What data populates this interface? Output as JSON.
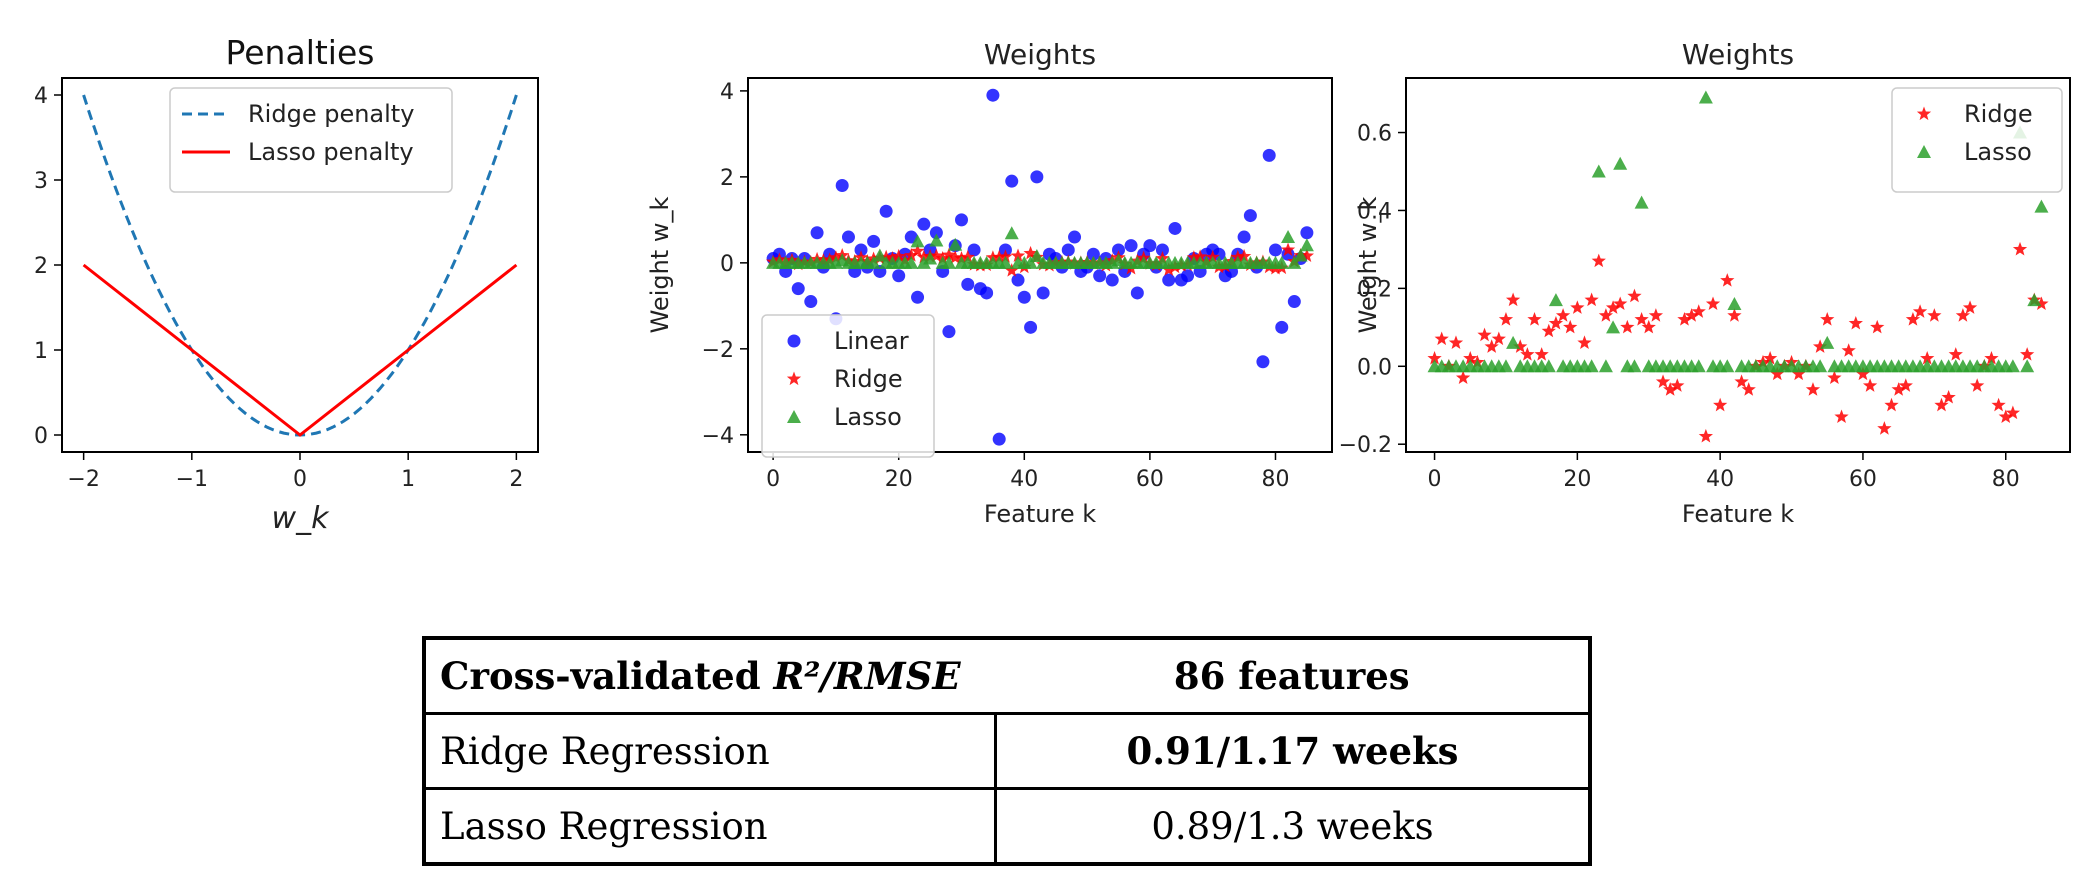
{
  "chart_data": [
    {
      "type": "line",
      "title": "Penalties",
      "xlabel": "w_k",
      "ylabel": "",
      "xlim": [
        -2.2,
        2.2
      ],
      "ylim": [
        -0.2,
        4.2
      ],
      "xticks": [
        "−2",
        "−1",
        "0",
        "1",
        "2"
      ],
      "yticks": [
        "0",
        "1",
        "2",
        "3",
        "4"
      ],
      "legend_position": "top-center",
      "series": [
        {
          "name": "Ridge penalty",
          "style": "dashed",
          "color": "#1f77b4",
          "x": [
            -2,
            -1.5,
            -1,
            -0.5,
            0,
            0.5,
            1,
            1.5,
            2
          ],
          "y": [
            4,
            2.25,
            1,
            0.25,
            0,
            0.25,
            1,
            2.25,
            4
          ]
        },
        {
          "name": "Lasso penalty",
          "style": "solid",
          "color": "#ff0000",
          "x": [
            -2,
            -1,
            0,
            1,
            2
          ],
          "y": [
            2,
            1,
            0,
            1,
            2
          ]
        }
      ]
    },
    {
      "type": "scatter",
      "title": "Weights",
      "xlabel": "Feature k",
      "ylabel": "Weight w_k",
      "xlim": [
        -4,
        89
      ],
      "ylim": [
        -4.4,
        4.3
      ],
      "xticks": [
        "0",
        "20",
        "40",
        "60",
        "80"
      ],
      "yticks": [
        "−4",
        "−2",
        "0",
        "2",
        "4"
      ],
      "legend_position": "bottom-left",
      "series": [
        {
          "name": "Linear",
          "marker": "circle",
          "color": "#0000ff",
          "x": [
            0,
            1,
            2,
            3,
            4,
            5,
            6,
            7,
            8,
            9,
            10,
            11,
            12,
            13,
            14,
            15,
            16,
            17,
            18,
            19,
            20,
            21,
            22,
            23,
            24,
            25,
            26,
            27,
            28,
            29,
            30,
            31,
            32,
            33,
            34,
            35,
            36,
            37,
            38,
            39,
            40,
            41,
            42,
            43,
            44,
            45,
            46,
            47,
            48,
            49,
            50,
            51,
            52,
            53,
            54,
            55,
            56,
            57,
            58,
            59,
            60,
            61,
            62,
            63,
            64,
            65,
            66,
            67,
            68,
            69,
            70,
            71,
            72,
            73,
            74,
            75,
            76,
            77,
            78,
            79,
            80,
            81,
            82,
            83,
            84,
            85
          ],
          "y": [
            0.1,
            0.2,
            -0.2,
            0.1,
            -0.6,
            0.1,
            -0.9,
            0.7,
            -0.1,
            0.2,
            -1.3,
            1.8,
            0.6,
            -0.2,
            0.3,
            -0.1,
            0.5,
            -0.2,
            1.2,
            0.1,
            -0.3,
            0.2,
            0.6,
            -0.8,
            0.9,
            0.3,
            0.7,
            -0.2,
            -1.6,
            0.4,
            1.0,
            -0.5,
            0.3,
            -0.6,
            -0.7,
            3.9,
            -4.1,
            0.3,
            1.9,
            -0.4,
            -0.8,
            -1.5,
            2.0,
            -0.7,
            0.2,
            0.1,
            -0.1,
            0.3,
            0.6,
            -0.2,
            -0.1,
            0.2,
            -0.3,
            0.1,
            -0.4,
            0.3,
            -0.2,
            0.4,
            -0.7,
            0.2,
            0.4,
            -0.1,
            0.3,
            -0.4,
            0.8,
            -0.4,
            -0.3,
            0.1,
            -0.2,
            0.2,
            0.3,
            0.2,
            -0.3,
            -0.2,
            0.2,
            0.6,
            1.1,
            -0.1,
            -2.3,
            2.5,
            0.3,
            -1.5,
            0.2,
            -0.9,
            0.1,
            0.7
          ]
        },
        {
          "name": "Ridge",
          "marker": "star",
          "color": "#ff0000",
          "x": [
            0,
            1,
            2,
            3,
            4,
            5,
            6,
            7,
            8,
            9,
            10,
            11,
            12,
            13,
            14,
            15,
            16,
            17,
            18,
            19,
            20,
            21,
            22,
            23,
            24,
            25,
            26,
            27,
            28,
            29,
            30,
            31,
            32,
            33,
            34,
            35,
            36,
            37,
            38,
            39,
            40,
            41,
            42,
            43,
            44,
            45,
            46,
            47,
            48,
            49,
            50,
            51,
            52,
            53,
            54,
            55,
            56,
            57,
            58,
            59,
            60,
            61,
            62,
            63,
            64,
            65,
            66,
            67,
            68,
            69,
            70,
            71,
            72,
            73,
            74,
            75,
            76,
            77,
            78,
            79,
            80,
            81,
            82,
            83,
            84,
            85
          ],
          "y": [
            0.02,
            0.07,
            0.0,
            0.06,
            -0.03,
            0.02,
            0.01,
            0.08,
            0.05,
            0.07,
            0.12,
            0.17,
            0.05,
            0.03,
            0.12,
            0.03,
            0.09,
            0.11,
            0.13,
            0.1,
            0.15,
            0.06,
            0.17,
            0.27,
            0.13,
            0.15,
            0.16,
            0.1,
            0.18,
            0.12,
            0.1,
            0.13,
            -0.04,
            -0.06,
            -0.05,
            0.12,
            0.13,
            0.14,
            -0.18,
            0.16,
            -0.1,
            0.22,
            0.13,
            -0.04,
            -0.06,
            0.0,
            0.01,
            0.02,
            -0.02,
            0.0,
            0.01,
            -0.02,
            0.0,
            -0.06,
            0.05,
            0.12,
            -0.03,
            -0.13,
            0.04,
            0.11,
            -0.02,
            -0.05,
            0.1,
            -0.16,
            -0.1,
            -0.06,
            -0.05,
            0.12,
            0.14,
            0.02,
            0.13,
            -0.1,
            -0.08,
            0.03,
            0.13,
            0.15,
            -0.05,
            0.0,
            0.02,
            -0.1,
            -0.13,
            -0.12,
            0.3,
            0.03,
            0.17,
            0.16
          ]
        },
        {
          "name": "Lasso",
          "marker": "triangle",
          "color": "#2ca02c",
          "x": [
            0,
            1,
            2,
            3,
            4,
            5,
            6,
            7,
            8,
            9,
            10,
            11,
            12,
            13,
            14,
            15,
            16,
            17,
            18,
            19,
            20,
            21,
            22,
            23,
            24,
            25,
            26,
            27,
            28,
            29,
            30,
            31,
            32,
            33,
            34,
            35,
            36,
            37,
            38,
            39,
            40,
            41,
            42,
            43,
            44,
            45,
            46,
            47,
            48,
            49,
            50,
            51,
            52,
            53,
            54,
            55,
            56,
            57,
            58,
            59,
            60,
            61,
            62,
            63,
            64,
            65,
            66,
            67,
            68,
            69,
            70,
            71,
            72,
            73,
            74,
            75,
            76,
            77,
            78,
            79,
            80,
            81,
            82,
            83,
            84,
            85
          ],
          "y": [
            0,
            0,
            0,
            0,
            0,
            0,
            0,
            0,
            0,
            0,
            0,
            0.06,
            0,
            0,
            0,
            0,
            0,
            0.17,
            0,
            0,
            0,
            0,
            0,
            0.5,
            0,
            0.1,
            0.52,
            0,
            0,
            0.42,
            0,
            0,
            0,
            0,
            0,
            0,
            0,
            0,
            0.69,
            0,
            0,
            0,
            0.16,
            0,
            0,
            0,
            0,
            0,
            0,
            0,
            0,
            0,
            0,
            0,
            0,
            0.06,
            0,
            0,
            0,
            0,
            0,
            0,
            0,
            0,
            0,
            0,
            0,
            0,
            0,
            0,
            0,
            0,
            0,
            0,
            0,
            0,
            0,
            0,
            0,
            0,
            0,
            0,
            0.6,
            0,
            0.17,
            0.41
          ]
        }
      ]
    },
    {
      "type": "scatter",
      "title": "Weights",
      "xlabel": "Feature k",
      "ylabel": "Weight w_k",
      "xlim": [
        -4,
        89
      ],
      "ylim": [
        -0.22,
        0.74
      ],
      "xticks": [
        "0",
        "20",
        "40",
        "60",
        "80"
      ],
      "yticks": [
        "−0.2",
        "0.0",
        "0.2",
        "0.4",
        "0.6"
      ],
      "legend_position": "top-right",
      "series": [
        {
          "name": "Ridge",
          "marker": "star",
          "color": "#ff0000",
          "x": [
            0,
            1,
            2,
            3,
            4,
            5,
            6,
            7,
            8,
            9,
            10,
            11,
            12,
            13,
            14,
            15,
            16,
            17,
            18,
            19,
            20,
            21,
            22,
            23,
            24,
            25,
            26,
            27,
            28,
            29,
            30,
            31,
            32,
            33,
            34,
            35,
            36,
            37,
            38,
            39,
            40,
            41,
            42,
            43,
            44,
            45,
            46,
            47,
            48,
            49,
            50,
            51,
            52,
            53,
            54,
            55,
            56,
            57,
            58,
            59,
            60,
            61,
            62,
            63,
            64,
            65,
            66,
            67,
            68,
            69,
            70,
            71,
            72,
            73,
            74,
            75,
            76,
            77,
            78,
            79,
            80,
            81,
            82,
            83,
            84,
            85
          ],
          "y": [
            0.02,
            0.07,
            0.0,
            0.06,
            -0.03,
            0.02,
            0.01,
            0.08,
            0.05,
            0.07,
            0.12,
            0.17,
            0.05,
            0.03,
            0.12,
            0.03,
            0.09,
            0.11,
            0.13,
            0.1,
            0.15,
            0.06,
            0.17,
            0.27,
            0.13,
            0.15,
            0.16,
            0.1,
            0.18,
            0.12,
            0.1,
            0.13,
            -0.04,
            -0.06,
            -0.05,
            0.12,
            0.13,
            0.14,
            -0.18,
            0.16,
            -0.1,
            0.22,
            0.13,
            -0.04,
            -0.06,
            0.0,
            0.01,
            0.02,
            -0.02,
            0.0,
            0.01,
            -0.02,
            0.0,
            -0.06,
            0.05,
            0.12,
            -0.03,
            -0.13,
            0.04,
            0.11,
            -0.02,
            -0.05,
            0.1,
            -0.16,
            -0.1,
            -0.06,
            -0.05,
            0.12,
            0.14,
            0.02,
            0.13,
            -0.1,
            -0.08,
            0.03,
            0.13,
            0.15,
            -0.05,
            0.0,
            0.02,
            -0.1,
            -0.13,
            -0.12,
            0.3,
            0.03,
            0.17,
            0.16
          ]
        },
        {
          "name": "Lasso",
          "marker": "triangle",
          "color": "#2ca02c",
          "x": [
            0,
            1,
            2,
            3,
            4,
            5,
            6,
            7,
            8,
            9,
            10,
            11,
            12,
            13,
            14,
            15,
            16,
            17,
            18,
            19,
            20,
            21,
            22,
            23,
            24,
            25,
            26,
            27,
            28,
            29,
            30,
            31,
            32,
            33,
            34,
            35,
            36,
            37,
            38,
            39,
            40,
            41,
            42,
            43,
            44,
            45,
            46,
            47,
            48,
            49,
            50,
            51,
            52,
            53,
            54,
            55,
            56,
            57,
            58,
            59,
            60,
            61,
            62,
            63,
            64,
            65,
            66,
            67,
            68,
            69,
            70,
            71,
            72,
            73,
            74,
            75,
            76,
            77,
            78,
            79,
            80,
            81,
            82,
            83,
            84,
            85
          ],
          "y": [
            0,
            0,
            0,
            0,
            0,
            0,
            0,
            0,
            0,
            0,
            0,
            0.06,
            0,
            0,
            0,
            0,
            0,
            0.17,
            0,
            0,
            0,
            0,
            0,
            0.5,
            0,
            0.1,
            0.52,
            0,
            0,
            0.42,
            0,
            0,
            0,
            0,
            0,
            0,
            0,
            0,
            0.69,
            0,
            0,
            0,
            0.16,
            0,
            0,
            0,
            0,
            0,
            0,
            0,
            0,
            0,
            0,
            0,
            0,
            0.06,
            0,
            0,
            0,
            0,
            0,
            0,
            0,
            0,
            0,
            0,
            0,
            0,
            0,
            0,
            0,
            0,
            0,
            0,
            0,
            0,
            0,
            0,
            0,
            0,
            0,
            0,
            0.6,
            0,
            0.17,
            0.41
          ]
        }
      ]
    }
  ],
  "table": {
    "header": {
      "metric_prefix": "Cross-validated ",
      "metric_math": "R²/RMSE",
      "features": "86 features"
    },
    "rows": [
      {
        "label": "Ridge Regression",
        "value": "0.91/1.17 weeks",
        "bold": true
      },
      {
        "label": "Lasso Regression",
        "value": "0.89/1.3 weeks",
        "bold": false
      }
    ]
  }
}
